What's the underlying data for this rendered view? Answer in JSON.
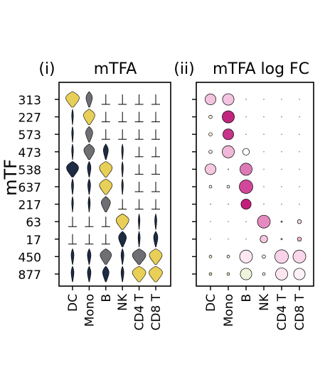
{
  "figure": {
    "y_axis_label": "mTF",
    "panel_i": {
      "letter": "(i)",
      "title": "mTFA"
    },
    "panel_ii": {
      "letter": "(ii)",
      "title": "mTFA log FC"
    }
  },
  "chart_data": [
    {
      "type": "violin",
      "panel": "(i)",
      "title": "mTFA",
      "ylabel": "mTF",
      "rows": [
        "313",
        "227",
        "573",
        "473",
        "538",
        "637",
        "217",
        "63",
        "17",
        "450",
        "877"
      ],
      "columns": [
        "DC",
        "Mono",
        "B",
        "NK",
        "CD4 T",
        "CD8 T"
      ],
      "colors": {
        "high": "#e8cf57",
        "mid": "#6e6e73",
        "low": "#1d2b45"
      },
      "cells": [
        [
          {
            "w": 0.95,
            "c": "high"
          },
          {
            "w": 0.45,
            "c": "mid"
          },
          {
            "w": 0.05,
            "c": "low"
          },
          {
            "w": 0.05,
            "c": "low"
          },
          {
            "w": 0.05,
            "c": "low"
          },
          {
            "w": 0.05,
            "c": "low"
          }
        ],
        [
          {
            "w": 0.08,
            "c": "low"
          },
          {
            "w": 0.8,
            "c": "high"
          },
          {
            "w": 0.05,
            "c": "low"
          },
          {
            "w": 0.05,
            "c": "low"
          },
          {
            "w": 0.05,
            "c": "low"
          },
          {
            "w": 0.05,
            "c": "low"
          }
        ],
        [
          {
            "w": 0.12,
            "c": "low"
          },
          {
            "w": 0.5,
            "c": "mid"
          },
          {
            "w": 0.05,
            "c": "low"
          },
          {
            "w": 0.05,
            "c": "low"
          },
          {
            "w": 0.05,
            "c": "low"
          },
          {
            "w": 0.05,
            "c": "low"
          }
        ],
        [
          {
            "w": 0.1,
            "c": "low"
          },
          {
            "w": 0.75,
            "c": "mid"
          },
          {
            "w": 0.35,
            "c": "low"
          },
          {
            "w": 0.08,
            "c": "low"
          },
          {
            "w": 0.05,
            "c": "low"
          },
          {
            "w": 0.05,
            "c": "low"
          }
        ],
        [
          {
            "w": 0.85,
            "c": "low"
          },
          {
            "w": 0.25,
            "c": "low"
          },
          {
            "w": 0.9,
            "c": "high"
          },
          {
            "w": 0.1,
            "c": "low"
          },
          {
            "w": 0.05,
            "c": "low"
          },
          {
            "w": 0.05,
            "c": "low"
          }
        ],
        [
          {
            "w": 0.15,
            "c": "low"
          },
          {
            "w": 0.2,
            "c": "low"
          },
          {
            "w": 0.9,
            "c": "high"
          },
          {
            "w": 0.08,
            "c": "low"
          },
          {
            "w": 0.05,
            "c": "low"
          },
          {
            "w": 0.05,
            "c": "low"
          }
        ],
        [
          {
            "w": 0.1,
            "c": "low"
          },
          {
            "w": 0.15,
            "c": "low"
          },
          {
            "w": 0.65,
            "c": "mid"
          },
          {
            "w": 0.05,
            "c": "low"
          },
          {
            "w": 0.05,
            "c": "low"
          },
          {
            "w": 0.05,
            "c": "low"
          }
        ],
        [
          {
            "w": 0.05,
            "c": "low"
          },
          {
            "w": 0.05,
            "c": "low"
          },
          {
            "w": 0.05,
            "c": "low"
          },
          {
            "w": 0.9,
            "c": "high"
          },
          {
            "w": 0.1,
            "c": "low"
          },
          {
            "w": 0.15,
            "c": "low"
          }
        ],
        [
          {
            "w": 0.05,
            "c": "low"
          },
          {
            "w": 0.05,
            "c": "low"
          },
          {
            "w": 0.05,
            "c": "low"
          },
          {
            "w": 0.55,
            "c": "low"
          },
          {
            "w": 0.15,
            "c": "low"
          },
          {
            "w": 0.3,
            "c": "low"
          }
        ],
        [
          {
            "w": 0.2,
            "c": "low"
          },
          {
            "w": 0.25,
            "c": "low"
          },
          {
            "w": 0.8,
            "c": "mid"
          },
          {
            "w": 0.2,
            "c": "low"
          },
          {
            "w": 0.95,
            "c": "mid"
          },
          {
            "w": 0.9,
            "c": "high"
          }
        ],
        [
          {
            "w": 0.2,
            "c": "low"
          },
          {
            "w": 0.25,
            "c": "low"
          },
          {
            "w": 0.45,
            "c": "low"
          },
          {
            "w": 0.2,
            "c": "low"
          },
          {
            "w": 0.95,
            "c": "high"
          },
          {
            "w": 0.95,
            "c": "high"
          }
        ]
      ]
    },
    {
      "type": "dotplot",
      "panel": "(ii)",
      "title": "mTFA log FC",
      "rows": [
        "313",
        "227",
        "573",
        "473",
        "538",
        "637",
        "217",
        "63",
        "17",
        "450",
        "877"
      ],
      "columns": [
        "DC",
        "Mono",
        "B",
        "NK",
        "CD4 T",
        "CD8 T"
      ],
      "cells": [
        [
          {
            "s": 0.8,
            "c": "#f2c4df"
          },
          {
            "s": 0.85,
            "c": "#f2c4df"
          },
          {
            "s": 0.05,
            "c": "#cccccc"
          },
          {
            "s": 0.05,
            "c": "#cccccc"
          },
          {
            "s": 0.05,
            "c": "#cccccc"
          },
          {
            "s": 0.05,
            "c": "#cccccc"
          }
        ],
        [
          {
            "s": 0.25,
            "c": "#f7f0d8"
          },
          {
            "s": 0.9,
            "c": "#c0267d"
          },
          {
            "s": 0.05,
            "c": "#cccccc"
          },
          {
            "s": 0.05,
            "c": "#cccccc"
          },
          {
            "s": 0.05,
            "c": "#cccccc"
          },
          {
            "s": 0.05,
            "c": "#cccccc"
          }
        ],
        [
          {
            "s": 0.25,
            "c": "#f7f0d8"
          },
          {
            "s": 0.8,
            "c": "#c8338a"
          },
          {
            "s": 0.05,
            "c": "#cccccc"
          },
          {
            "s": 0.05,
            "c": "#cccccc"
          },
          {
            "s": 0.05,
            "c": "#cccccc"
          },
          {
            "s": 0.05,
            "c": "#cccccc"
          }
        ],
        [
          {
            "s": 0.25,
            "c": "#f7eef3"
          },
          {
            "s": 0.9,
            "c": "#f0b8d8"
          },
          {
            "s": 0.5,
            "c": "#ffffff"
          },
          {
            "s": 0.05,
            "c": "#cccccc"
          },
          {
            "s": 0.05,
            "c": "#cccccc"
          },
          {
            "s": 0.05,
            "c": "#cccccc"
          }
        ],
        [
          {
            "s": 0.8,
            "c": "#f5c8e0"
          },
          {
            "s": 0.1,
            "c": "#cccccc"
          },
          {
            "s": 0.9,
            "c": "#dd7ab6"
          },
          {
            "s": 0.05,
            "c": "#cccccc"
          },
          {
            "s": 0.05,
            "c": "#cccccc"
          },
          {
            "s": 0.05,
            "c": "#cccccc"
          }
        ],
        [
          {
            "s": 0.2,
            "c": "#ffffff"
          },
          {
            "s": 0.2,
            "c": "#ffffff"
          },
          {
            "s": 1.0,
            "c": "#d2479a"
          },
          {
            "s": 0.05,
            "c": "#cccccc"
          },
          {
            "s": 0.05,
            "c": "#cccccc"
          },
          {
            "s": 0.05,
            "c": "#cccccc"
          }
        ],
        [
          {
            "s": 0.08,
            "c": "#999999"
          },
          {
            "s": 0.08,
            "c": "#999999"
          },
          {
            "s": 0.75,
            "c": "#c41f7c"
          },
          {
            "s": 0.05,
            "c": "#cccccc"
          },
          {
            "s": 0.05,
            "c": "#cccccc"
          },
          {
            "s": 0.05,
            "c": "#cccccc"
          }
        ],
        [
          {
            "s": 0.05,
            "c": "#cccccc"
          },
          {
            "s": 0.05,
            "c": "#cccccc"
          },
          {
            "s": 0.05,
            "c": "#cccccc"
          },
          {
            "s": 0.95,
            "c": "#e58ac1"
          },
          {
            "s": 0.15,
            "c": "#ffffff"
          },
          {
            "s": 0.3,
            "c": "#f5d3e6"
          }
        ],
        [
          {
            "s": 0.05,
            "c": "#cccccc"
          },
          {
            "s": 0.05,
            "c": "#cccccc"
          },
          {
            "s": 0.05,
            "c": "#cccccc"
          },
          {
            "s": 0.55,
            "c": "#f5c8e0"
          },
          {
            "s": 0.15,
            "c": "#ffffff"
          },
          {
            "s": 0.3,
            "c": "#f2b6d4"
          }
        ],
        [
          {
            "s": 0.2,
            "c": "#f4f0d0"
          },
          {
            "s": 0.2,
            "c": "#f4f0d0"
          },
          {
            "s": 0.95,
            "c": "#fde8f2"
          },
          {
            "s": 0.25,
            "c": "#f7eef3"
          },
          {
            "s": 1.0,
            "c": "#f9d3e8"
          },
          {
            "s": 0.95,
            "c": "#fbd6ea"
          }
        ],
        [
          {
            "s": 0.2,
            "c": "#e0ecbf"
          },
          {
            "s": 0.2,
            "c": "#f2efcf"
          },
          {
            "s": 0.85,
            "c": "#eef5dc"
          },
          {
            "s": 0.2,
            "c": "#ffffff"
          },
          {
            "s": 0.9,
            "c": "#fde6f1"
          },
          {
            "s": 0.85,
            "c": "#fdf0f6"
          }
        ]
      ]
    }
  ]
}
